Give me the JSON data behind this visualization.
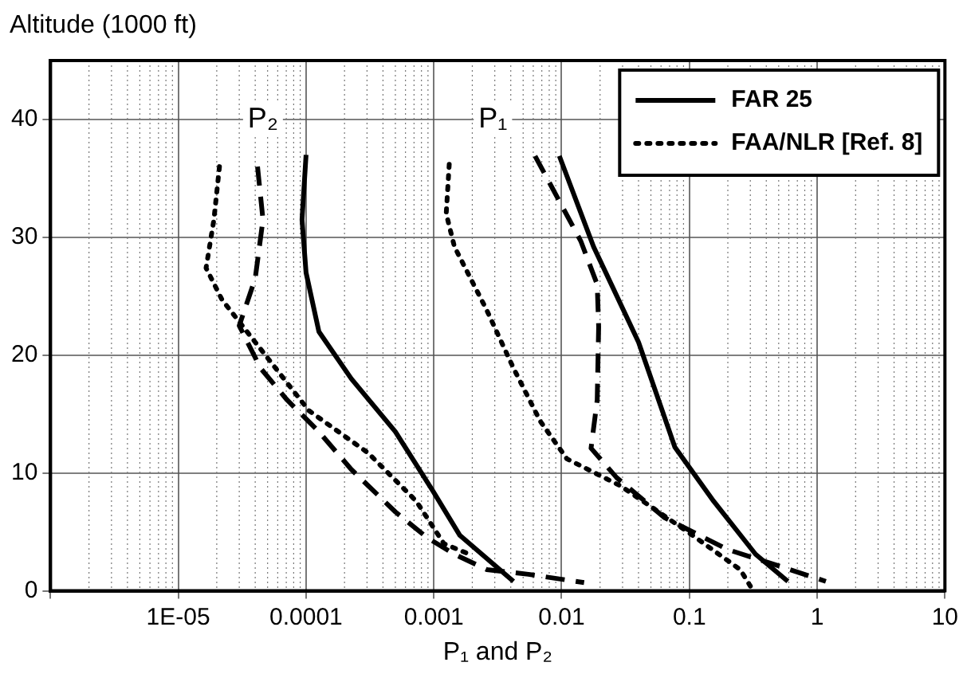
{
  "chart_data": {
    "type": "line",
    "xlabel": "P₁ and P₂",
    "ylabel": "Altitude (1000 ft)",
    "log": "x",
    "grid": true,
    "legend": "top right",
    "marker": "none",
    "xlim": [
      1e-06,
      10
    ],
    "xticks": [
      {
        "value": 1e-06,
        "label": null
      },
      {
        "value": 1e-05,
        "label": "1E-05"
      },
      0.0001,
      0.001,
      0.01,
      0.1,
      1,
      10
    ],
    "ylim": [
      0,
      45
    ],
    "yticks": [
      0,
      10,
      20,
      30,
      40
    ],
    "annotations": [
      {
        "text": "P₂",
        "x": 4.6e-05,
        "y": 40
      },
      {
        "text": "P₁",
        "x": 0.0029,
        "y": 40
      }
    ],
    "series": [
      {
        "name": "FAR 25",
        "color": "#000000",
        "line_style": "solid",
        "x": [
          0.0001,
          9.3e-05,
          0.0001,
          0.000126,
          0.000226,
          0.0005,
          0.00098,
          0.0016,
          0.0042,
          null,
          0.0096,
          0.0178,
          0.04,
          0.077,
          0.155,
          0.33,
          0.59
        ],
        "values": [
          37,
          31.5,
          27,
          22,
          18,
          13.5,
          8.5,
          4.7,
          0.8,
          null,
          36.9,
          29.2,
          21.1,
          12.2,
          7.6,
          3.1,
          0.8
        ]
      },
      {
        "name": "FAA/NLR [Ref. 8]",
        "color": "#000000",
        "line_style": "dotted",
        "x": [
          2.1e-05,
          1.9e-05,
          1.65e-05,
          2.2e-05,
          4e-05,
          0.000105,
          0.000306,
          0.00073,
          0.0012,
          0.0019,
          null,
          0.00132,
          0.00125,
          0.00145,
          0.0026,
          0.0042,
          0.0068,
          0.011,
          0.029,
          0.1,
          0.25,
          0.3
        ],
        "values": [
          36,
          31.5,
          27.4,
          24.7,
          21.1,
          15.3,
          11.7,
          7.6,
          4.0,
          3.1,
          null,
          36.2,
          32,
          29.2,
          23.8,
          18.9,
          14.4,
          11.2,
          8.9,
          4.9,
          1.8,
          0.4
        ]
      },
      {
        "color": "#000000",
        "line_style": "dashed",
        "x": [
          4.17e-05,
          4.6e-05,
          4e-05,
          3e-05,
          4.4e-05,
          7.1e-05,
          0.000126,
          0.000226,
          0.0005,
          0.00089,
          0.00145,
          0.0026,
          0.0055,
          0.015,
          null,
          0.0062,
          0.0141,
          0.019,
          0.0195,
          0.019,
          0.017,
          0.027,
          0.064,
          0.2,
          0.54,
          1.17
        ],
        "values": [
          36,
          31.5,
          26.5,
          22.5,
          18.9,
          16.2,
          13.5,
          10.3,
          6.7,
          4.5,
          3.1,
          1.8,
          1.4,
          0.7,
          null,
          36.9,
          29.7,
          26,
          22.4,
          16.2,
          12.1,
          9.6,
          6.2,
          3.5,
          2.0,
          0.8
        ]
      }
    ]
  }
}
